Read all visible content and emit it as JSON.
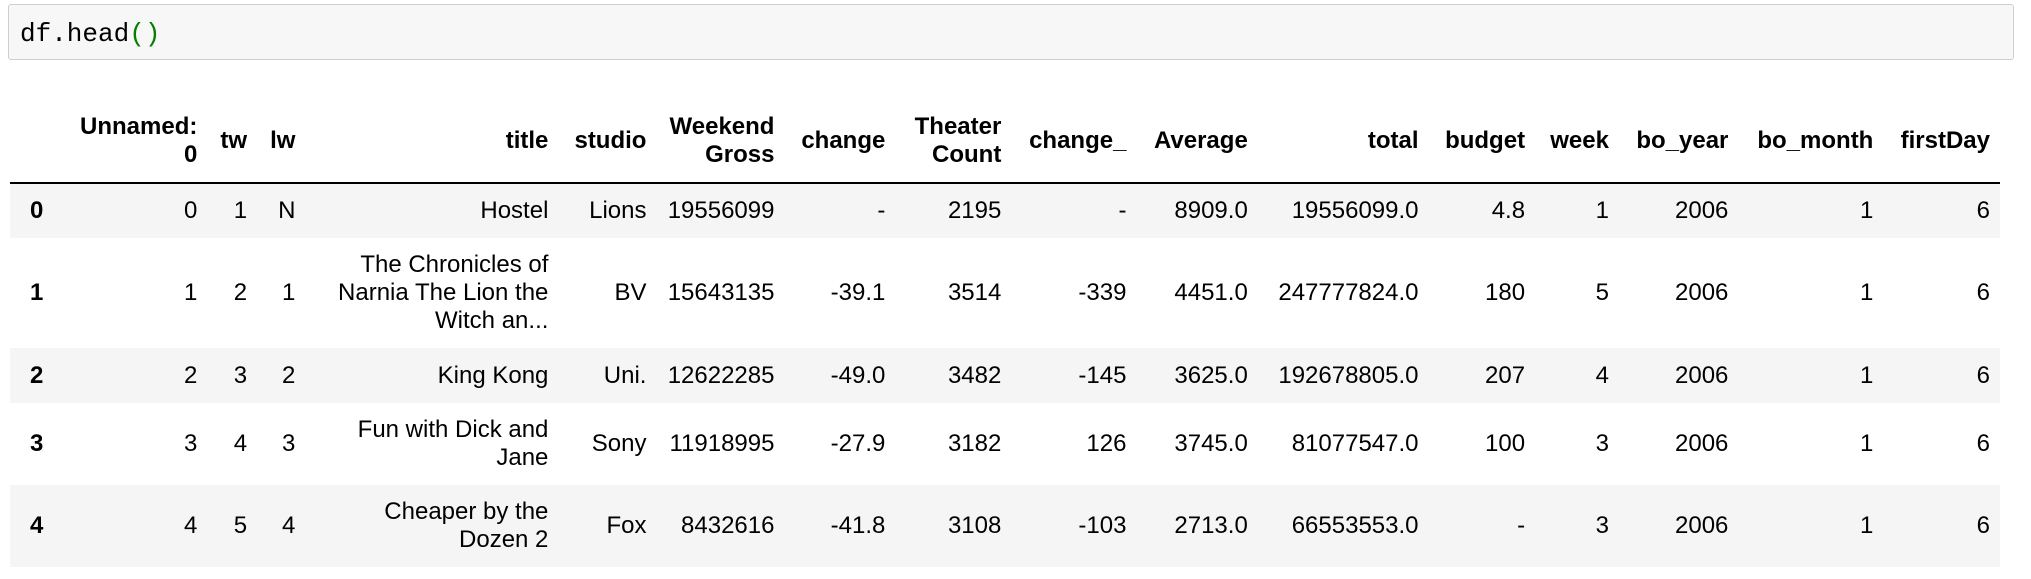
{
  "cell": {
    "code_name": "df.head",
    "code_open": "(",
    "code_close": ")"
  },
  "table": {
    "columns": [
      "",
      "Unnamed: 0",
      "tw",
      "lw",
      "title",
      "studio",
      "Weekend Gross",
      "change",
      "Theater Count",
      "change_",
      "Average",
      "total",
      "budget",
      "week",
      "bo_year",
      "bo_month",
      "firstDay"
    ],
    "rows": [
      [
        "0",
        "0",
        "1",
        "N",
        "Hostel",
        "Lions",
        "19556099",
        "-",
        "2195",
        "-",
        "8909.0",
        "19556099.0",
        "4.8",
        "1",
        "2006",
        "1",
        "6"
      ],
      [
        "1",
        "1",
        "2",
        "1",
        "The Chronicles of Narnia The Lion the Witch an...",
        "BV",
        "15643135",
        "-39.1",
        "3514",
        "-339",
        "4451.0",
        "247777824.0",
        "180",
        "5",
        "2006",
        "1",
        "6"
      ],
      [
        "2",
        "2",
        "3",
        "2",
        "King Kong",
        "Uni.",
        "12622285",
        "-49.0",
        "3482",
        "-145",
        "3625.0",
        "192678805.0",
        "207",
        "4",
        "2006",
        "1",
        "6"
      ],
      [
        "3",
        "3",
        "4",
        "3",
        "Fun with Dick and Jane",
        "Sony",
        "11918995",
        "-27.9",
        "3182",
        "126",
        "3745.0",
        "81077547.0",
        "100",
        "3",
        "2006",
        "1",
        "6"
      ],
      [
        "4",
        "4",
        "5",
        "4",
        "Cheaper by the Dozen 2",
        "Fox",
        "8432616",
        "-41.8",
        "3108",
        "-103",
        "2713.0",
        "66553553.0",
        "-",
        "3",
        "2006",
        "1",
        "6"
      ]
    ]
  }
}
